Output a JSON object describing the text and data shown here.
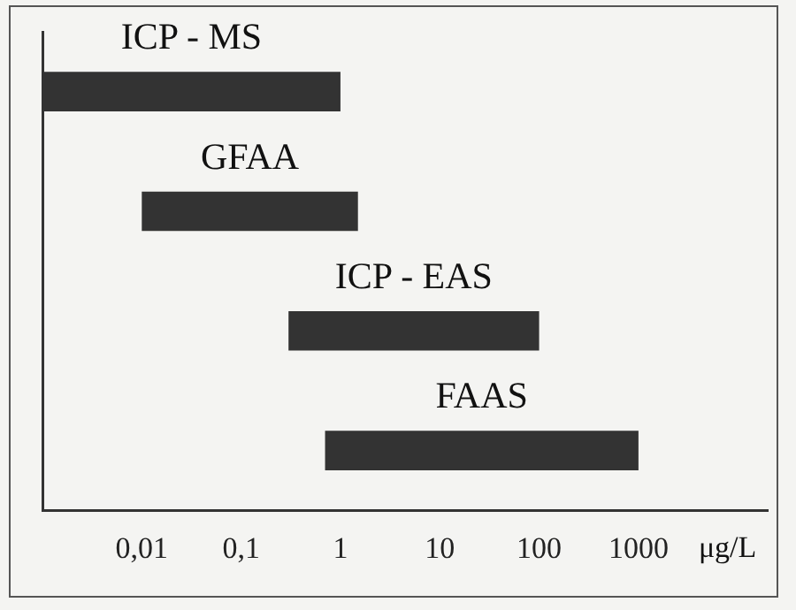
{
  "chart_data": {
    "type": "bar",
    "orientation": "horizontal",
    "xlabel": "μg/L",
    "categories": [
      "ICP - MS",
      "GFAA",
      "ICP - EAS",
      "FAAS"
    ],
    "base": [
      0.001,
      0.01,
      0.3,
      0.7
    ],
    "values": [
      0.999,
      1.49,
      99.7,
      999.3
    ],
    "color": "#333333",
    "log": "x",
    "xlim": [
      0.001,
      20000
    ],
    "xticks": [
      {
        "value": 0.01,
        "label": "0,01"
      },
      {
        "value": 0.1,
        "label": "0,1"
      },
      1,
      10,
      100,
      1000
    ],
    "tick_labels": "x",
    "grid": false,
    "legend": false
  }
}
